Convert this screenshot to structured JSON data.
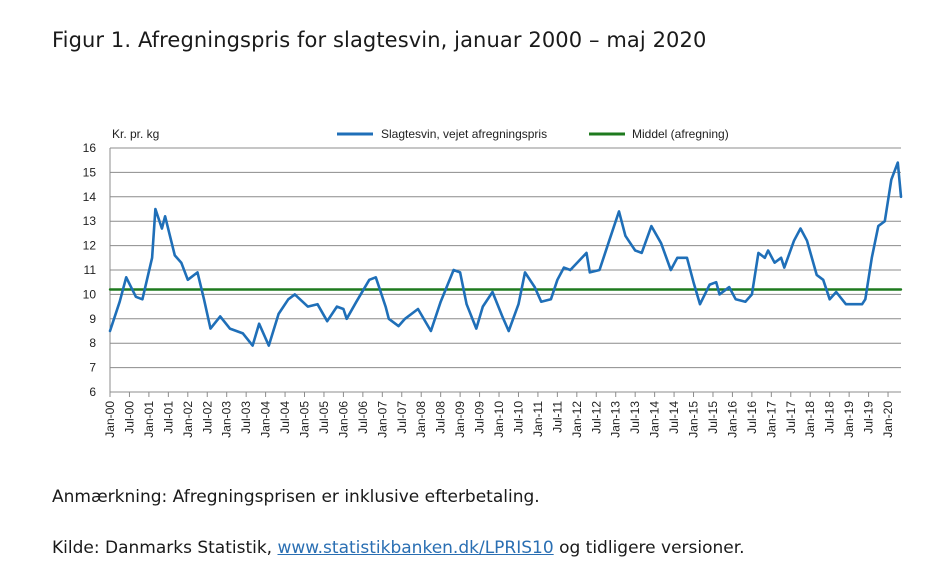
{
  "title": "Figur 1. Afregningspris for slagtesvin, januar 2000 – maj 2020",
  "note": "Anmærkning: Afregningsprisen er inklusive efterbetaling.",
  "source": {
    "prefix": "Kilde: Danmarks Statistik, ",
    "link": "www.statistikbanken.dk/LPRIS10",
    "suffix": " og tidligere versioner."
  },
  "chart_data": {
    "type": "line",
    "ylabel": "Kr. pr. kg",
    "ylim": [
      6,
      16
    ],
    "yticks": [
      6,
      7,
      8,
      9,
      10,
      11,
      12,
      13,
      14,
      15,
      16
    ],
    "grid": true,
    "legend_position": "top",
    "x_tick_labels": [
      "Jan-00",
      "Jul-00",
      "Jan-01",
      "Jul-01",
      "Jan-02",
      "Jul-02",
      "Jan-03",
      "Jul-03",
      "Jan-04",
      "Jul-04",
      "Jan-05",
      "Jul-05",
      "Jan-06",
      "Jul-06",
      "Jan-07",
      "Jul-07",
      "Jan-08",
      "Jul-08",
      "Jan-09",
      "Jul-09",
      "Jan-10",
      "Jul-10",
      "Jan-11",
      "Jul-11",
      "Jan-12",
      "Jul-12",
      "Jan-13",
      "Jul-13",
      "Jan-14",
      "Jul-14",
      "Jan-15",
      "Jul-15",
      "Jan-16",
      "Jul-16",
      "Jan-17",
      "Jul-17",
      "Jan-18",
      "Jul-18",
      "Jan-19",
      "Jul-19",
      "Jan-20"
    ],
    "x_start": "2000-01",
    "x_end": "2020-05",
    "series": [
      {
        "name": "Slagtesvin, vejet afregningspris",
        "color": "#1f6fb8",
        "points": [
          [
            "2000-01",
            8.5
          ],
          [
            "2000-04",
            9.7
          ],
          [
            "2000-06",
            10.7
          ],
          [
            "2000-09",
            9.9
          ],
          [
            "2000-11",
            9.8
          ],
          [
            "2001-02",
            11.5
          ],
          [
            "2001-03",
            13.5
          ],
          [
            "2001-05",
            12.7
          ],
          [
            "2001-06",
            13.2
          ],
          [
            "2001-09",
            11.6
          ],
          [
            "2001-11",
            11.3
          ],
          [
            "2002-01",
            10.6
          ],
          [
            "2002-04",
            10.9
          ],
          [
            "2002-06",
            9.8
          ],
          [
            "2002-08",
            8.6
          ],
          [
            "2002-11",
            9.1
          ],
          [
            "2003-02",
            8.6
          ],
          [
            "2003-06",
            8.4
          ],
          [
            "2003-09",
            7.9
          ],
          [
            "2003-11",
            8.8
          ],
          [
            "2004-02",
            7.9
          ],
          [
            "2004-05",
            9.2
          ],
          [
            "2004-08",
            9.8
          ],
          [
            "2004-10",
            10.0
          ],
          [
            "2005-02",
            9.5
          ],
          [
            "2005-05",
            9.6
          ],
          [
            "2005-08",
            8.9
          ],
          [
            "2005-11",
            9.5
          ],
          [
            "2006-01",
            9.4
          ],
          [
            "2006-02",
            9.0
          ],
          [
            "2006-05",
            9.7
          ],
          [
            "2006-09",
            10.6
          ],
          [
            "2006-11",
            10.7
          ],
          [
            "2007-02",
            9.5
          ],
          [
            "2007-03",
            9.0
          ],
          [
            "2007-06",
            8.7
          ],
          [
            "2007-08",
            9.0
          ],
          [
            "2007-12",
            9.4
          ],
          [
            "2008-04",
            8.5
          ],
          [
            "2008-07",
            9.7
          ],
          [
            "2008-11",
            11.0
          ],
          [
            "2009-01",
            10.9
          ],
          [
            "2009-03",
            9.6
          ],
          [
            "2009-06",
            8.6
          ],
          [
            "2009-08",
            9.5
          ],
          [
            "2009-11",
            10.1
          ],
          [
            "2010-02",
            9.1
          ],
          [
            "2010-04",
            8.5
          ],
          [
            "2010-07",
            9.6
          ],
          [
            "2010-09",
            10.9
          ],
          [
            "2010-12",
            10.3
          ],
          [
            "2011-02",
            9.7
          ],
          [
            "2011-05",
            9.8
          ],
          [
            "2011-07",
            10.6
          ],
          [
            "2011-09",
            11.1
          ],
          [
            "2011-11",
            11.0
          ],
          [
            "2012-04",
            11.7
          ],
          [
            "2012-05",
            10.9
          ],
          [
            "2012-08",
            11.0
          ],
          [
            "2012-11",
            12.2
          ],
          [
            "2013-02",
            13.4
          ],
          [
            "2013-04",
            12.4
          ],
          [
            "2013-07",
            11.8
          ],
          [
            "2013-09",
            11.7
          ],
          [
            "2013-12",
            12.8
          ],
          [
            "2014-03",
            12.1
          ],
          [
            "2014-06",
            11.0
          ],
          [
            "2014-08",
            11.5
          ],
          [
            "2014-11",
            11.5
          ],
          [
            "2015-01",
            10.5
          ],
          [
            "2015-03",
            9.6
          ],
          [
            "2015-06",
            10.4
          ],
          [
            "2015-08",
            10.5
          ],
          [
            "2015-09",
            10.0
          ],
          [
            "2015-12",
            10.3
          ],
          [
            "2016-02",
            9.8
          ],
          [
            "2016-05",
            9.7
          ],
          [
            "2016-07",
            10.0
          ],
          [
            "2016-09",
            11.7
          ],
          [
            "2016-11",
            11.5
          ],
          [
            "2016-12",
            11.8
          ],
          [
            "2017-02",
            11.3
          ],
          [
            "2017-04",
            11.5
          ],
          [
            "2017-05",
            11.1
          ],
          [
            "2017-08",
            12.2
          ],
          [
            "2017-10",
            12.7
          ],
          [
            "2017-12",
            12.2
          ],
          [
            "2018-03",
            10.8
          ],
          [
            "2018-05",
            10.6
          ],
          [
            "2018-07",
            9.8
          ],
          [
            "2018-09",
            10.1
          ],
          [
            "2018-12",
            9.6
          ],
          [
            "2019-03",
            9.6
          ],
          [
            "2019-05",
            9.6
          ],
          [
            "2019-06",
            9.8
          ],
          [
            "2019-08",
            11.5
          ],
          [
            "2019-10",
            12.8
          ],
          [
            "2019-12",
            13.0
          ],
          [
            "2020-02",
            14.7
          ],
          [
            "2020-04",
            15.4
          ],
          [
            "2020-05",
            14.0
          ]
        ]
      },
      {
        "name": "Middel (afregning)",
        "color": "#1e7a1e",
        "points": [
          [
            "2000-01",
            10.2
          ],
          [
            "2020-05",
            10.2
          ]
        ]
      }
    ]
  }
}
